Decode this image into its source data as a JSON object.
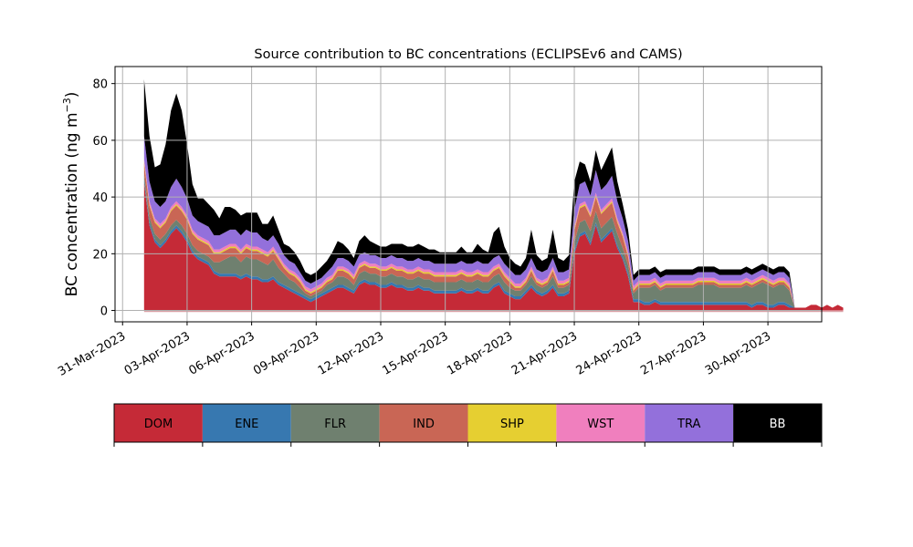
{
  "chart_data": {
    "type": "area",
    "stacked": true,
    "title": "Source contribution to BC concentrations (ECLIPSEv6 and CAMS)",
    "xlabel": "",
    "ylabel": "BC concentration (ng m",
    "ylabel_sup": "−3",
    "ylabel_close": ")",
    "ylim": [
      -4,
      86
    ],
    "yticks": [
      0,
      20,
      40,
      60,
      80
    ],
    "x_start_day": 0,
    "x_step_days": 0.25,
    "xlim_days": [
      -1.35,
      31.5
    ],
    "xticks_days": [
      -1,
      2,
      5,
      8,
      11,
      14,
      17,
      20,
      23,
      26,
      29
    ],
    "xtick_labels": [
      "31-Mar-2023",
      "03-Apr-2023",
      "06-Apr-2023",
      "09-Apr-2023",
      "12-Apr-2023",
      "15-Apr-2023",
      "18-Apr-2023",
      "21-Apr-2023",
      "24-Apr-2023",
      "27-Apr-2023",
      "30-Apr-2023"
    ],
    "x_reference": "01-Apr-2023",
    "grid": true,
    "legend_position": "bottom",
    "series": [
      {
        "name": "DOM",
        "color": "#c52a37",
        "values": [
          45,
          30,
          24,
          22,
          24,
          27,
          29,
          27,
          24,
          20,
          18,
          17,
          16,
          13,
          12,
          12,
          12,
          12,
          11,
          12,
          11,
          11,
          10,
          10,
          11,
          9,
          8,
          7,
          6,
          5,
          4,
          3,
          4,
          5,
          6,
          7,
          8,
          8,
          7,
          6,
          9,
          10,
          9,
          9,
          8,
          8,
          9,
          8,
          8,
          7,
          7,
          8,
          7,
          7,
          6,
          6,
          6,
          6,
          6,
          7,
          6,
          6,
          7,
          6,
          6,
          8,
          9,
          6,
          5,
          4,
          4,
          6,
          8,
          6,
          5,
          6,
          8,
          5,
          5,
          6,
          20,
          26,
          27,
          23,
          30,
          24,
          26,
          28,
          22,
          18,
          12,
          3,
          3,
          2,
          2,
          3,
          2,
          2,
          2,
          2,
          2,
          2,
          2,
          2,
          2,
          2,
          2,
          2,
          2,
          2,
          2,
          2,
          2,
          1,
          2,
          2,
          1,
          1,
          2,
          2,
          1,
          1,
          1,
          1,
          2,
          2,
          1,
          2,
          1,
          2,
          1
        ]
      },
      {
        "name": "ENE",
        "color": "#3778b0",
        "values": [
          1,
          1,
          1,
          1,
          1,
          1,
          1,
          1,
          1,
          1,
          1,
          1,
          1,
          1,
          1,
          1,
          1,
          1,
          1,
          1,
          1,
          1,
          1,
          1,
          1,
          1,
          1,
          1,
          1,
          1,
          1,
          1,
          1,
          1,
          1,
          1,
          1,
          1,
          1,
          1,
          1,
          1,
          1,
          1,
          1,
          1,
          1,
          1,
          1,
          1,
          1,
          1,
          1,
          1,
          1,
          1,
          1,
          1,
          1,
          1,
          1,
          1,
          1,
          1,
          1,
          1,
          1,
          1,
          1,
          1,
          1,
          1,
          1,
          1,
          1,
          1,
          1,
          1,
          1,
          1,
          1,
          1,
          1,
          1,
          1,
          1,
          1,
          1,
          1,
          1,
          1,
          1,
          1,
          1,
          1,
          1,
          1,
          1,
          1,
          1,
          1,
          1,
          1,
          1,
          1,
          1,
          1,
          1,
          1,
          1,
          1,
          1,
          1,
          1,
          1,
          1,
          1,
          1,
          1,
          1,
          1
        ]
      },
      {
        "name": "FLR",
        "color": "#6f806f",
        "values": [
          2,
          2,
          2,
          2,
          2,
          2,
          2,
          2,
          2,
          2,
          2,
          2,
          2,
          3,
          4,
          5,
          6,
          6,
          5,
          6,
          6,
          6,
          6,
          5,
          6,
          5,
          4,
          3,
          3,
          2,
          1,
          1,
          1,
          1,
          2,
          2,
          3,
          3,
          3,
          2,
          3,
          3,
          3,
          3,
          3,
          3,
          3,
          3,
          3,
          3,
          3,
          3,
          3,
          3,
          3,
          3,
          3,
          3,
          3,
          3,
          3,
          3,
          3,
          3,
          3,
          3,
          3,
          3,
          2,
          2,
          2,
          2,
          3,
          2,
          2,
          2,
          3,
          2,
          2,
          2,
          3,
          4,
          4,
          4,
          4,
          4,
          4,
          4,
          4,
          3,
          3,
          2,
          4,
          5,
          5,
          5,
          4,
          5,
          5,
          5,
          5,
          5,
          5,
          6,
          6,
          6,
          6,
          5,
          5,
          5,
          5,
          5,
          6,
          6,
          6,
          7,
          7,
          6,
          6,
          6,
          5
        ]
      },
      {
        "name": "IND",
        "color": "#c96655",
        "values": [
          4,
          4,
          4,
          4,
          4,
          5,
          5,
          5,
          5,
          4,
          4,
          4,
          4,
          3,
          3,
          3,
          3,
          3,
          3,
          3,
          3,
          3,
          3,
          3,
          3,
          3,
          2,
          2,
          2,
          2,
          1,
          1,
          1,
          1,
          1,
          1,
          2,
          2,
          2,
          2,
          2,
          2,
          2,
          2,
          2,
          2,
          2,
          2,
          2,
          2,
          2,
          2,
          2,
          2,
          2,
          2,
          2,
          2,
          2,
          2,
          2,
          2,
          2,
          2,
          2,
          2,
          2,
          2,
          2,
          1,
          1,
          1,
          2,
          1,
          1,
          1,
          2,
          1,
          1,
          1,
          4,
          5,
          5,
          5,
          5,
          5,
          5,
          5,
          4,
          4,
          3,
          1,
          1,
          1,
          1,
          1,
          1,
          1,
          1,
          1,
          1,
          1,
          1,
          1,
          1,
          1,
          1,
          1,
          1,
          1,
          1,
          1,
          1,
          1,
          1,
          1,
          1,
          1,
          1,
          1,
          1
        ]
      },
      {
        "name": "SHP",
        "color": "#e6cf31",
        "values": [
          0.5,
          0.5,
          0.5,
          0.5,
          0.5,
          0.5,
          0.5,
          0.5,
          0.5,
          0.5,
          0.5,
          0.5,
          0.5,
          0.5,
          0.5,
          0.5,
          0.5,
          0.5,
          0.5,
          0.5,
          0.5,
          0.5,
          0.5,
          0.5,
          0.5,
          0.5,
          0.5,
          0.5,
          0.5,
          0.5,
          0.5,
          0.5,
          0.5,
          0.5,
          0.5,
          0.5,
          0.5,
          0.5,
          0.5,
          0.5,
          0.5,
          0.5,
          0.5,
          0.5,
          0.5,
          0.5,
          0.5,
          0.5,
          0.5,
          0.5,
          0.5,
          0.5,
          0.5,
          0.5,
          0.5,
          0.5,
          0.5,
          0.5,
          0.5,
          0.5,
          0.5,
          0.5,
          0.5,
          0.5,
          0.5,
          0.5,
          0.5,
          0.5,
          0.5,
          0.5,
          0.5,
          0.5,
          0.5,
          0.5,
          0.5,
          0.5,
          0.5,
          0.5,
          0.5,
          0.5,
          0.5,
          0.5,
          0.5,
          0.5,
          0.5,
          0.5,
          0.5,
          0.5,
          0.5,
          0.5,
          0.5,
          0.5,
          0.5,
          0.5,
          0.5,
          0.5,
          0.5,
          0.5,
          0.5,
          0.5,
          0.5,
          0.5,
          0.5,
          0.5,
          0.5,
          0.5,
          0.5,
          0.5,
          0.5,
          0.5,
          0.5,
          0.5,
          0.5,
          0.5,
          0.5,
          0.5,
          0.5,
          0.5,
          0.5,
          0.5,
          0.5
        ]
      },
      {
        "name": "WST",
        "color": "#f07fbe",
        "values": [
          1,
          1,
          1,
          1,
          1,
          1,
          1,
          1,
          1,
          1,
          1,
          1,
          1,
          1,
          1,
          1,
          1,
          1,
          1,
          1,
          1,
          1,
          1,
          1,
          1,
          1,
          1,
          1,
          1,
          1,
          1,
          1,
          1,
          1,
          1,
          1,
          1,
          1,
          1,
          1,
          1,
          1,
          1,
          1,
          1,
          1,
          1,
          1,
          1,
          1,
          1,
          1,
          1,
          1,
          1,
          1,
          1,
          1,
          1,
          1,
          1,
          1,
          1,
          1,
          1,
          1,
          1,
          1,
          1,
          1,
          1,
          1,
          1,
          1,
          1,
          1,
          1,
          1,
          1,
          1,
          1,
          1,
          1,
          1,
          1,
          1,
          1,
          1,
          1,
          1,
          1,
          1,
          1,
          1,
          1,
          1,
          1,
          1,
          1,
          1,
          1,
          1,
          1,
          1,
          1,
          1,
          1,
          1,
          1,
          1,
          1,
          1,
          1,
          1,
          1,
          1,
          1,
          1,
          1,
          1,
          1
        ]
      },
      {
        "name": "TRA",
        "color": "#9370db",
        "values": [
          8,
          7,
          6,
          6,
          6,
          7,
          8,
          7,
          6,
          5,
          5,
          5,
          5,
          5,
          5,
          5,
          5,
          5,
          5,
          5,
          5,
          5,
          4,
          4,
          4,
          4,
          3,
          3,
          3,
          2,
          2,
          2,
          2,
          2,
          2,
          3,
          3,
          3,
          3,
          3,
          3,
          3,
          3,
          3,
          3,
          3,
          3,
          3,
          3,
          3,
          3,
          3,
          3,
          3,
          3,
          3,
          3,
          3,
          3,
          3,
          3,
          3,
          3,
          3,
          3,
          3,
          3,
          3,
          3,
          3,
          3,
          3,
          3,
          3,
          3,
          3,
          3,
          3,
          3,
          3,
          6,
          7,
          7,
          6,
          8,
          7,
          7,
          8,
          6,
          5,
          4,
          2,
          2,
          2,
          2,
          2,
          2,
          2,
          2,
          2,
          2,
          2,
          2,
          2,
          2,
          2,
          2,
          2,
          2,
          2,
          2,
          2,
          2,
          2,
          2,
          2,
          2,
          2,
          2,
          2,
          2
        ]
      },
      {
        "name": "BB",
        "color": "#000000",
        "values": [
          20,
          16,
          12,
          15,
          20,
          27,
          30,
          27,
          19,
          11,
          8,
          9,
          8,
          9,
          6,
          9,
          8,
          7,
          7,
          6,
          7,
          7,
          5,
          6,
          7,
          5,
          4,
          5,
          4,
          4,
          3,
          3,
          3,
          4,
          4,
          5,
          6,
          5,
          4,
          3,
          5,
          6,
          5,
          4,
          4,
          4,
          4,
          5,
          5,
          5,
          5,
          5,
          5,
          4,
          5,
          4,
          4,
          4,
          4,
          5,
          4,
          4,
          6,
          5,
          4,
          9,
          10,
          6,
          4,
          4,
          3,
          4,
          10,
          5,
          4,
          4,
          10,
          5,
          4,
          5,
          10,
          8,
          6,
          5,
          7,
          7,
          9,
          10,
          7,
          5,
          4,
          2,
          2,
          2,
          2,
          2,
          2,
          2,
          2,
          2,
          2,
          2,
          2,
          2,
          2,
          2,
          2,
          2,
          2,
          2,
          2,
          2,
          2,
          2,
          2,
          2,
          2,
          2,
          2,
          2,
          2
        ]
      }
    ]
  }
}
